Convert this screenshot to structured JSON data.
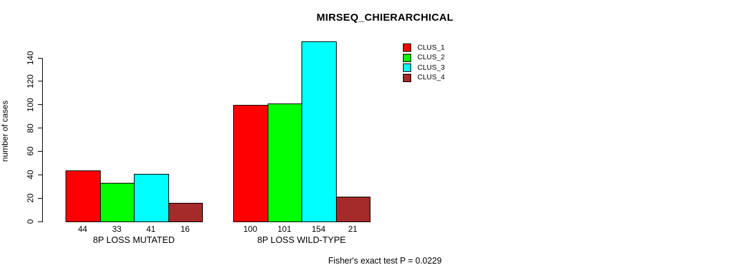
{
  "chart_data": {
    "type": "bar",
    "title": "MIRSEQ_CHIERARCHICAL",
    "ylabel": "number of cases",
    "xlabel": "",
    "categories": [
      "8P LOSS MUTATED",
      "8P LOSS WILD-TYPE"
    ],
    "series": [
      {
        "name": "CLUS_1",
        "color": "#ff0000",
        "values": [
          44,
          100
        ]
      },
      {
        "name": "CLUS_2",
        "color": "#00ff00",
        "values": [
          33,
          101
        ]
      },
      {
        "name": "CLUS_3",
        "color": "#00ffff",
        "values": [
          41,
          154
        ]
      },
      {
        "name": "CLUS_4",
        "color": "#a52a2a",
        "values": [
          16,
          21
        ]
      }
    ],
    "y_ticks": [
      0,
      20,
      40,
      60,
      80,
      100,
      120,
      140
    ],
    "ylim": [
      0,
      140
    ],
    "grid": false,
    "bar_value_labels": true,
    "legend_position": "top-right",
    "annotation": "Fisher's exact test P = 0.0229"
  }
}
